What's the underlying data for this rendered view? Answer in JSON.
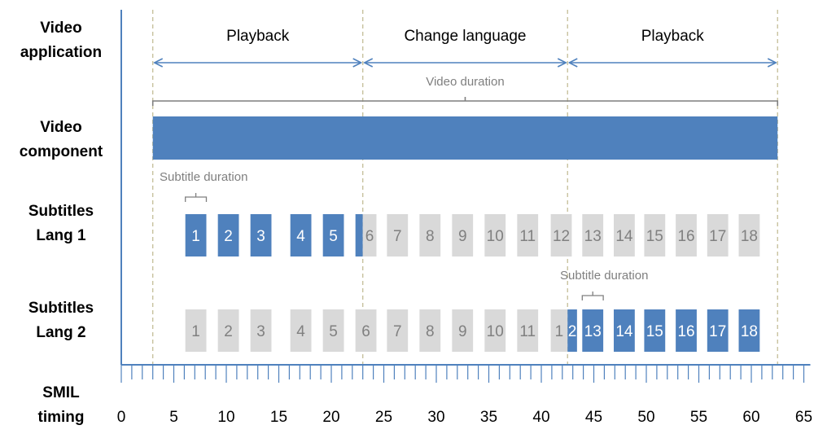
{
  "row_labels": {
    "video_app": [
      "Video",
      "application"
    ],
    "video_component": [
      "Video",
      "component"
    ],
    "lang1": [
      "Subtitles",
      "Lang 1"
    ],
    "lang2": [
      "Subtitles",
      "Lang 2"
    ],
    "smil": [
      "SMIL",
      "timing"
    ]
  },
  "phases": [
    {
      "label": "Playback",
      "start": 3,
      "end": 23
    },
    {
      "label": "Change language",
      "start": 23,
      "end": 42.5
    },
    {
      "label": "Playback",
      "start": 42.5,
      "end": 62.5
    }
  ],
  "video_duration_label": "Video duration",
  "video_duration": {
    "start": 3,
    "end": 62.5
  },
  "subtitle_duration_label": "Subtitle duration",
  "axis": {
    "min": 0,
    "max": 65,
    "major_ticks": [
      0,
      5,
      10,
      15,
      20,
      25,
      30,
      35,
      40,
      45,
      50,
      55,
      60,
      65
    ],
    "minor_step": 1
  },
  "subtitles": {
    "lang1": [
      {
        "label": "1",
        "start": 6.1,
        "end": 8.1,
        "active": true
      },
      {
        "label": "2",
        "start": 9.2,
        "end": 11.2,
        "active": true
      },
      {
        "label": "3",
        "start": 12.3,
        "end": 14.3,
        "active": true
      },
      {
        "label": "4",
        "start": 16.1,
        "end": 18.1,
        "active": true
      },
      {
        "label": "5",
        "start": 19.2,
        "end": 21.2,
        "active": true
      },
      {
        "label": "",
        "start": 22.3,
        "end": 23.0,
        "active": true
      },
      {
        "label": "6",
        "start": 23.0,
        "end": 24.3,
        "active": false
      },
      {
        "label": "7",
        "start": 25.3,
        "end": 27.3,
        "active": false
      },
      {
        "label": "8",
        "start": 28.4,
        "end": 30.4,
        "active": false
      },
      {
        "label": "9",
        "start": 31.5,
        "end": 33.5,
        "active": false
      },
      {
        "label": "10",
        "start": 34.6,
        "end": 36.6,
        "active": false
      },
      {
        "label": "11",
        "start": 37.7,
        "end": 39.7,
        "active": false
      },
      {
        "label": "12",
        "start": 40.9,
        "end": 42.9,
        "active": false
      },
      {
        "label": "13",
        "start": 43.9,
        "end": 45.9,
        "active": false
      },
      {
        "label": "14",
        "start": 46.9,
        "end": 48.9,
        "active": false
      },
      {
        "label": "15",
        "start": 49.8,
        "end": 51.8,
        "active": false
      },
      {
        "label": "16",
        "start": 52.8,
        "end": 54.8,
        "active": false
      },
      {
        "label": "17",
        "start": 55.8,
        "end": 57.8,
        "active": false
      },
      {
        "label": "18",
        "start": 58.8,
        "end": 60.8,
        "active": false
      }
    ],
    "lang2": [
      {
        "label": "1",
        "start": 6.1,
        "end": 8.1,
        "active": false
      },
      {
        "label": "2",
        "start": 9.2,
        "end": 11.2,
        "active": false
      },
      {
        "label": "3",
        "start": 12.3,
        "end": 14.3,
        "active": false
      },
      {
        "label": "4",
        "start": 16.1,
        "end": 18.1,
        "active": false
      },
      {
        "label": "5",
        "start": 19.2,
        "end": 21.2,
        "active": false
      },
      {
        "label": "6",
        "start": 22.3,
        "end": 24.3,
        "active": false
      },
      {
        "label": "7",
        "start": 25.3,
        "end": 27.3,
        "active": false
      },
      {
        "label": "8",
        "start": 28.4,
        "end": 30.4,
        "active": false
      },
      {
        "label": "9",
        "start": 31.5,
        "end": 33.5,
        "active": false
      },
      {
        "label": "10",
        "start": 34.6,
        "end": 36.6,
        "active": false
      },
      {
        "label": "11",
        "start": 37.7,
        "end": 39.7,
        "active": false
      },
      {
        "label": "1",
        "start": 40.9,
        "end": 42.5,
        "active": false
      },
      {
        "label": "2",
        "start": 42.5,
        "end": 43.4,
        "active": true
      },
      {
        "label": "13",
        "start": 43.9,
        "end": 45.9,
        "active": true
      },
      {
        "label": "14",
        "start": 46.9,
        "end": 48.9,
        "active": true
      },
      {
        "label": "15",
        "start": 49.8,
        "end": 51.8,
        "active": true
      },
      {
        "label": "16",
        "start": 52.8,
        "end": 54.8,
        "active": true
      },
      {
        "label": "17",
        "start": 55.8,
        "end": 57.8,
        "active": true
      },
      {
        "label": "18",
        "start": 58.8,
        "end": 60.8,
        "active": true
      }
    ]
  },
  "colors": {
    "active": "#4f81bd",
    "inactive": "#d9d9d9",
    "inactive_text": "#808080",
    "arrow": "#4f81bd",
    "bracket": "#7f7f7f",
    "dash": "#c4bd97",
    "axis": "#4f81bd"
  }
}
